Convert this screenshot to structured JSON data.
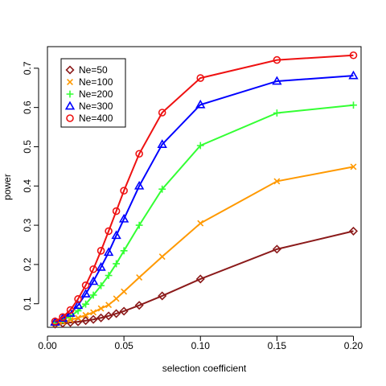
{
  "chart_data": {
    "type": "line",
    "xlabel": "selection coefficient",
    "ylabel": "power",
    "xlim": [
      0.0,
      0.205
    ],
    "ylim": [
      0.04,
      0.755
    ],
    "xticks": [
      0.0,
      0.05,
      0.1,
      0.15,
      0.2
    ],
    "xtick_labels": [
      "0.00",
      "0.05",
      "0.10",
      "0.15",
      "0.20"
    ],
    "yticks": [
      0.1,
      0.2,
      0.3,
      0.4,
      0.5,
      0.6,
      0.7
    ],
    "ytick_labels": [
      "0.1",
      "0.2",
      "0.3",
      "0.4",
      "0.5",
      "0.6",
      "0.7"
    ],
    "grid": false,
    "legend_position": "top-left",
    "x": [
      0.005,
      0.01,
      0.015,
      0.02,
      0.025,
      0.03,
      0.035,
      0.04,
      0.045,
      0.05,
      0.06,
      0.075,
      0.1,
      0.15,
      0.2
    ],
    "series": [
      {
        "name": "Ne=50",
        "color": "#8b1a1a",
        "marker": "diamond",
        "values": [
          0.048,
          0.05,
          0.052,
          0.054,
          0.057,
          0.06,
          0.064,
          0.069,
          0.075,
          0.081,
          0.096,
          0.12,
          0.163,
          0.239,
          0.285
        ]
      },
      {
        "name": "Ne=100",
        "color": "#ff9900",
        "marker": "x",
        "values": [
          0.05,
          0.054,
          0.059,
          0.064,
          0.071,
          0.078,
          0.088,
          0.097,
          0.113,
          0.131,
          0.167,
          0.22,
          0.305,
          0.412,
          0.449
        ]
      },
      {
        "name": "Ne=200",
        "color": "#33ff33",
        "marker": "plus",
        "values": [
          0.052,
          0.059,
          0.068,
          0.082,
          0.099,
          0.122,
          0.146,
          0.172,
          0.202,
          0.235,
          0.3,
          0.392,
          0.503,
          0.586,
          0.606
        ]
      },
      {
        "name": "Ne=300",
        "color": "#0000ff",
        "marker": "triangle",
        "values": [
          0.053,
          0.063,
          0.076,
          0.096,
          0.125,
          0.157,
          0.193,
          0.231,
          0.274,
          0.316,
          0.4,
          0.506,
          0.607,
          0.667,
          0.681
        ]
      },
      {
        "name": "Ne=400",
        "color": "#ee1111",
        "marker": "circle",
        "values": [
          0.055,
          0.066,
          0.084,
          0.112,
          0.147,
          0.188,
          0.235,
          0.285,
          0.336,
          0.388,
          0.482,
          0.587,
          0.675,
          0.721,
          0.733
        ]
      }
    ]
  }
}
